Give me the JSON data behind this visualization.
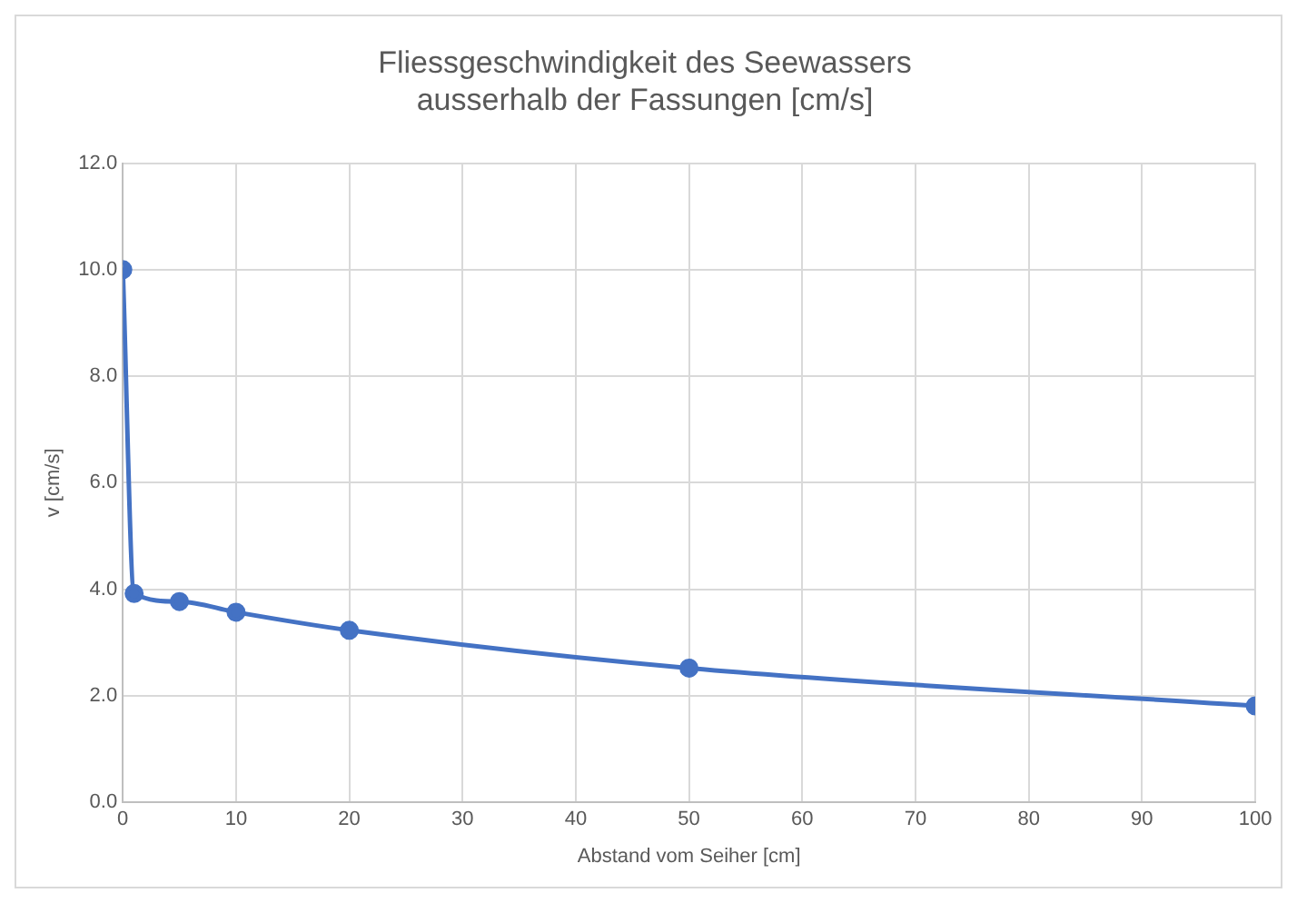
{
  "chart_data": {
    "type": "line",
    "title": "Fliessgeschwindigkeit des Seewassers\nausserhalb der Fassungen [cm/s]",
    "xlabel": "Abstand vom Seiher [cm]",
    "ylabel": "v [cm/s]",
    "x": [
      0,
      1,
      5,
      10,
      20,
      50,
      100
    ],
    "series": [
      {
        "color": "#4472c4",
        "values": [
          10.0,
          3.92,
          3.77,
          3.57,
          3.23,
          2.52,
          1.81
        ]
      }
    ],
    "xlim": [
      0,
      100
    ],
    "xticks": [
      0,
      10,
      20,
      30,
      40,
      50,
      60,
      70,
      80,
      90,
      100
    ],
    "ylim": [
      0,
      12
    ],
    "yticks": [
      {
        "value": 0,
        "label": "0.0"
      },
      {
        "value": 2,
        "label": "2.0"
      },
      {
        "value": 4,
        "label": "4.0"
      },
      {
        "value": 6,
        "label": "6.0"
      },
      {
        "value": 8,
        "label": "8.0"
      },
      {
        "value": 10,
        "label": "10.0"
      },
      {
        "value": 12,
        "label": "12.0"
      }
    ],
    "grid": true,
    "legend": false,
    "marker": "circle",
    "line_style": "solid"
  }
}
